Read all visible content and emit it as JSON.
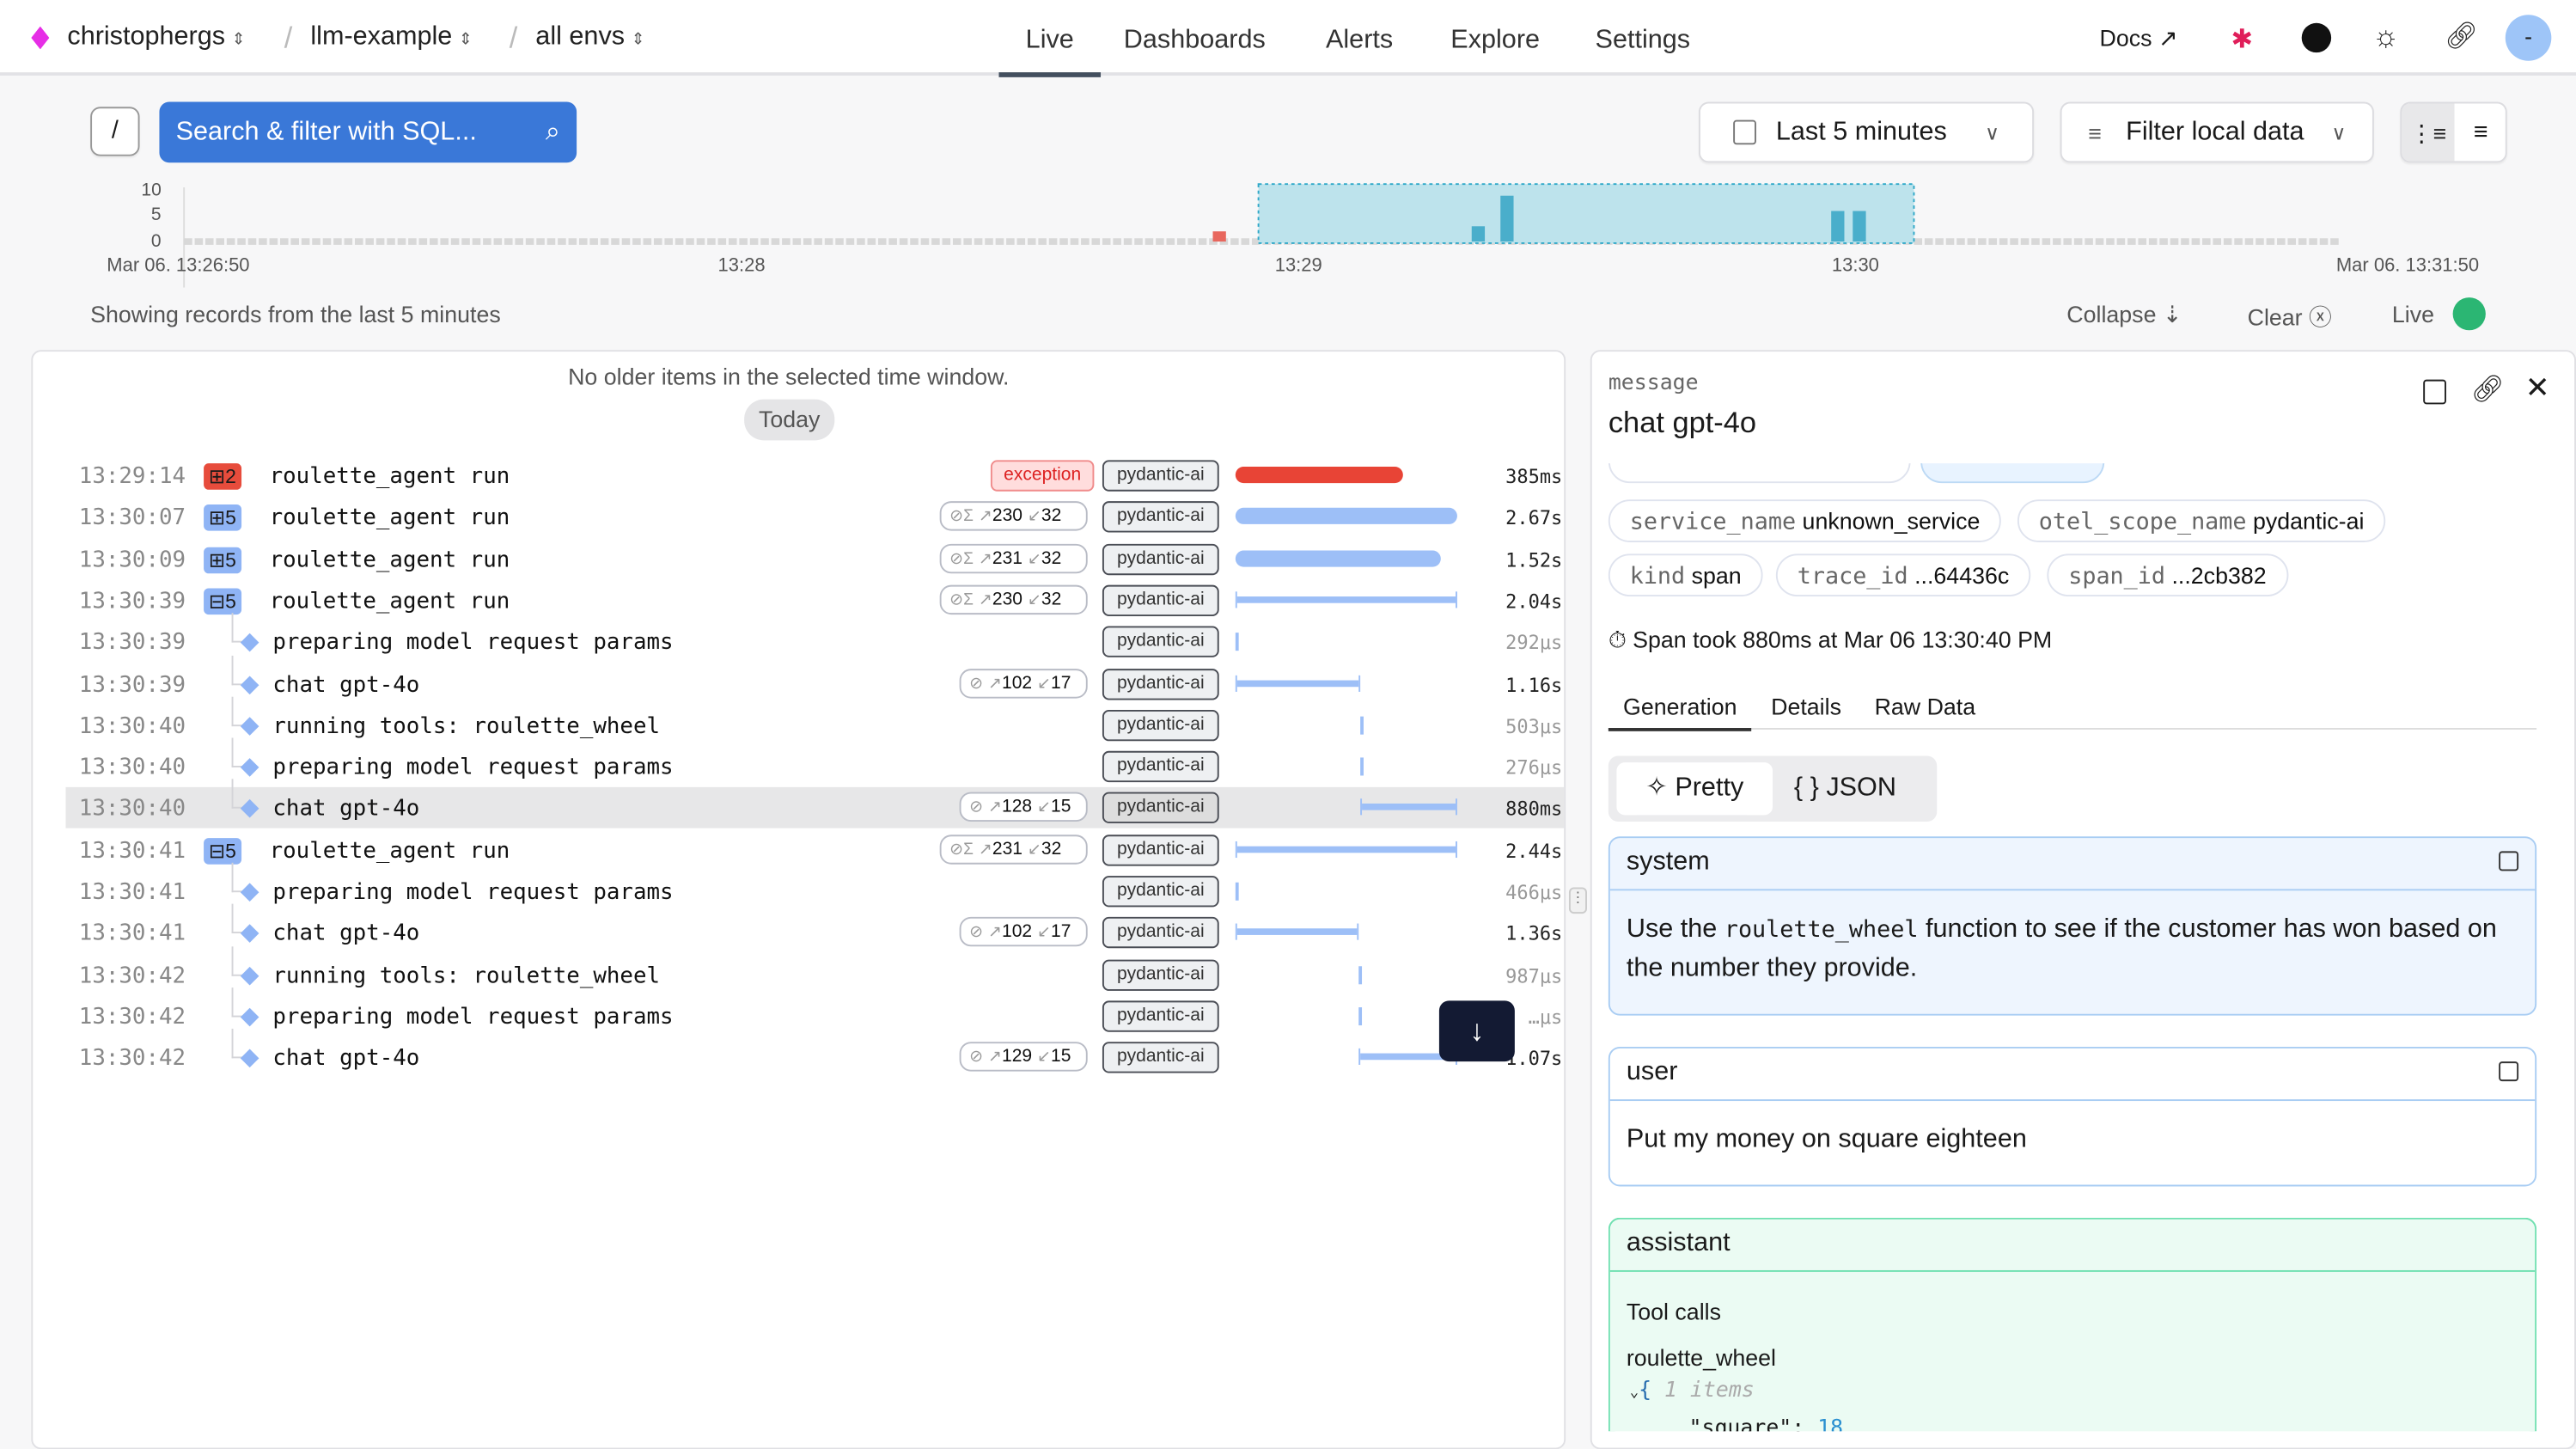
{
  "header": {
    "org": "christophergs",
    "project": "llm-example",
    "env": "all envs",
    "nav": [
      "Live",
      "Dashboards",
      "Alerts",
      "Explore",
      "Settings"
    ],
    "active_nav": "Live",
    "docs": "Docs",
    "avatar": "-"
  },
  "toolbar": {
    "slash_key": "/",
    "search_placeholder": "Search & filter with SQL...",
    "time_range": "Last 5 minutes",
    "filter_label": "Filter local data"
  },
  "histogram": {
    "y_ticks": [
      "10",
      "5",
      "0"
    ],
    "x_ticks": [
      "Mar 06. 13:26:50",
      "13:28",
      "13:29",
      "13:30",
      "Mar 06. 13:31:50"
    ],
    "bars": [
      {
        "time": "13:29:14",
        "value": 2,
        "color": "#e8675e"
      },
      {
        "time": "13:29:50",
        "value": 3,
        "color": "#4aaecb"
      },
      {
        "time": "13:29:54",
        "value": 9,
        "color": "#4aaecb"
      },
      {
        "time": "13:30:40",
        "value": 6,
        "color": "#4aaecb"
      },
      {
        "time": "13:30:43",
        "value": 6,
        "color": "#4aaecb"
      }
    ]
  },
  "status": {
    "showing": "Showing records from the last 5 minutes",
    "collapse": "Collapse",
    "clear": "Clear",
    "live": "Live"
  },
  "list": {
    "no_older": "No older items in the selected time window.",
    "today": "Today",
    "rows": [
      {
        "time": "13:29:14",
        "count": "2",
        "count_color": "#e74c3c",
        "name": "roulette_agent run",
        "exception": "exception",
        "tag": "pydantic-ai",
        "duration": "385ms"
      },
      {
        "time": "13:30:07",
        "count": "5",
        "count_color": "#8fb4f5",
        "name": "roulette_agent run",
        "tokens_in": "230",
        "tokens_out": "32",
        "sum": true,
        "tag": "pydantic-ai",
        "duration": "2.67s"
      },
      {
        "time": "13:30:09",
        "count": "5",
        "count_color": "#8fb4f5",
        "name": "roulette_agent run",
        "tokens_in": "231",
        "tokens_out": "32",
        "sum": true,
        "tag": "pydantic-ai",
        "duration": "1.52s"
      },
      {
        "time": "13:30:39",
        "count": "5",
        "count_color": "#8fb4f5",
        "expanded": true,
        "name": "roulette_agent run",
        "tokens_in": "230",
        "tokens_out": "32",
        "sum": true,
        "tag": "pydantic-ai",
        "duration": "2.04s"
      },
      {
        "time": "13:30:39",
        "child": true,
        "name": "preparing model request params",
        "tag": "pydantic-ai",
        "duration": "292μs"
      },
      {
        "time": "13:30:39",
        "child": true,
        "name": "chat gpt-4o",
        "tokens_in": "102",
        "tokens_out": "17",
        "tag": "pydantic-ai",
        "duration": "1.16s"
      },
      {
        "time": "13:30:40",
        "child": true,
        "name": "running tools: roulette_wheel",
        "tag": "pydantic-ai",
        "duration": "503μs"
      },
      {
        "time": "13:30:40",
        "child": true,
        "name": "preparing model request params",
        "tag": "pydantic-ai",
        "duration": "276μs"
      },
      {
        "time": "13:30:40",
        "child": true,
        "selected": true,
        "name": "chat gpt-4o",
        "tokens_in": "128",
        "tokens_out": "15",
        "tag": "pydantic-ai",
        "duration": "880ms"
      },
      {
        "time": "13:30:41",
        "count": "5",
        "count_color": "#8fb4f5",
        "expanded": true,
        "name": "roulette_agent run",
        "tokens_in": "231",
        "tokens_out": "32",
        "sum": true,
        "tag": "pydantic-ai",
        "duration": "2.44s"
      },
      {
        "time": "13:30:41",
        "child": true,
        "name": "preparing model request params",
        "tag": "pydantic-ai",
        "duration": "466μs"
      },
      {
        "time": "13:30:41",
        "child": true,
        "name": "chat gpt-4o",
        "tokens_in": "102",
        "tokens_out": "17",
        "tag": "pydantic-ai",
        "duration": "1.36s"
      },
      {
        "time": "13:30:42",
        "child": true,
        "name": "running tools: roulette_wheel",
        "tag": "pydantic-ai",
        "duration": "987μs"
      },
      {
        "time": "13:30:42",
        "child": true,
        "name": "preparing model request params",
        "tag": "pydantic-ai",
        "duration": "…μs"
      },
      {
        "time": "13:30:42",
        "child": true,
        "name": "chat gpt-4o",
        "tokens_in": "129",
        "tokens_out": "15",
        "tag": "pydantic-ai",
        "duration": "1.07s"
      }
    ]
  },
  "detail": {
    "label": "message",
    "title": "chat gpt-4o",
    "chips": [
      {
        "k": "service_name",
        "v": "unknown_service"
      },
      {
        "k": "otel_scope_name",
        "v": "pydantic-ai"
      },
      {
        "k": "kind",
        "v": "span"
      },
      {
        "k": "trace_id",
        "v": "...64436c"
      },
      {
        "k": "span_id",
        "v": "...2cb382"
      }
    ],
    "span_info": "Span took 880ms at Mar 06 13:30:40 PM",
    "tabs": [
      "Generation",
      "Details",
      "Raw Data"
    ],
    "active_tab": "Generation",
    "view": [
      "Pretty",
      "{ } JSON"
    ],
    "messages": {
      "system": {
        "role": "system",
        "pre": "Use the ",
        "code": "roulette_wheel",
        "post": " function to see if the customer has won based on the number they provide."
      },
      "user": {
        "role": "user",
        "text": "Put my money on square eighteen"
      },
      "assistant": {
        "role": "assistant",
        "tool_calls": "Tool calls",
        "tool": "roulette_wheel",
        "items": "1 items",
        "key": "\"square\":",
        "val": "18"
      }
    }
  }
}
